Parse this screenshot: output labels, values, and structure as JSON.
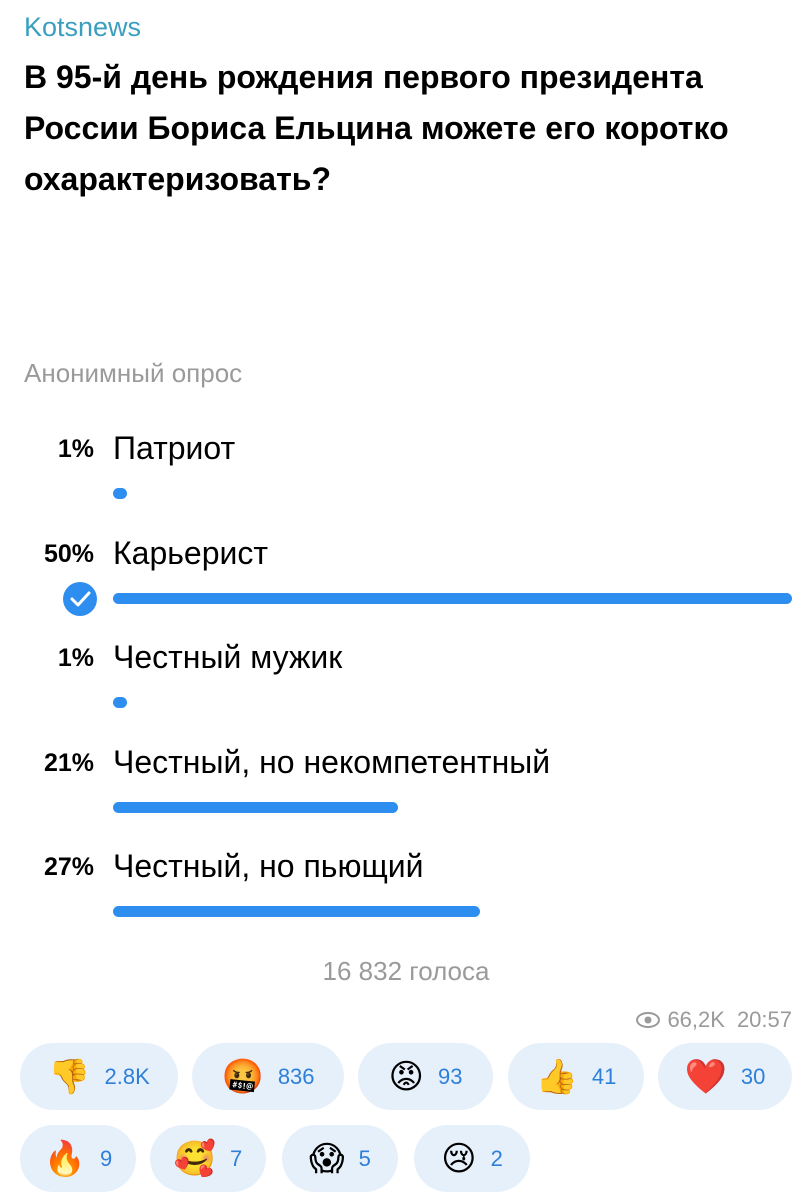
{
  "channel": "Kotsnews",
  "question": "В 95-й день рождения первого президента России Бориса Ельцина можете его коротко охарактеризовать?",
  "poll_type": "Анонимный опрос",
  "options": [
    {
      "percent": 1,
      "percent_label": "1%",
      "label": "Патриот",
      "selected": false
    },
    {
      "percent": 50,
      "percent_label": "50%",
      "label": "Карьерист",
      "selected": true
    },
    {
      "percent": 1,
      "percent_label": "1%",
      "label": "Честный мужик",
      "selected": false
    },
    {
      "percent": 21,
      "percent_label": "21%",
      "label": "Честный, но некомпетентный",
      "selected": false
    },
    {
      "percent": 27,
      "percent_label": "27%",
      "label": "Честный, но пьющий",
      "selected": false
    }
  ],
  "total_votes": "16 832 голоса",
  "views": "66,2K",
  "time": "20:57",
  "reactions": [
    {
      "emoji": "👎",
      "count": "2.8K"
    },
    {
      "emoji": "🤬",
      "count": "836"
    },
    {
      "emoji": "😡",
      "count": "93"
    },
    {
      "emoji": "👍",
      "count": "41"
    },
    {
      "emoji": "❤️",
      "count": "30"
    },
    {
      "emoji": "🔥",
      "count": "9"
    },
    {
      "emoji": "🥰",
      "count": "7"
    },
    {
      "emoji": "😱",
      "count": "5"
    },
    {
      "emoji": "😢",
      "count": "2"
    }
  ]
}
